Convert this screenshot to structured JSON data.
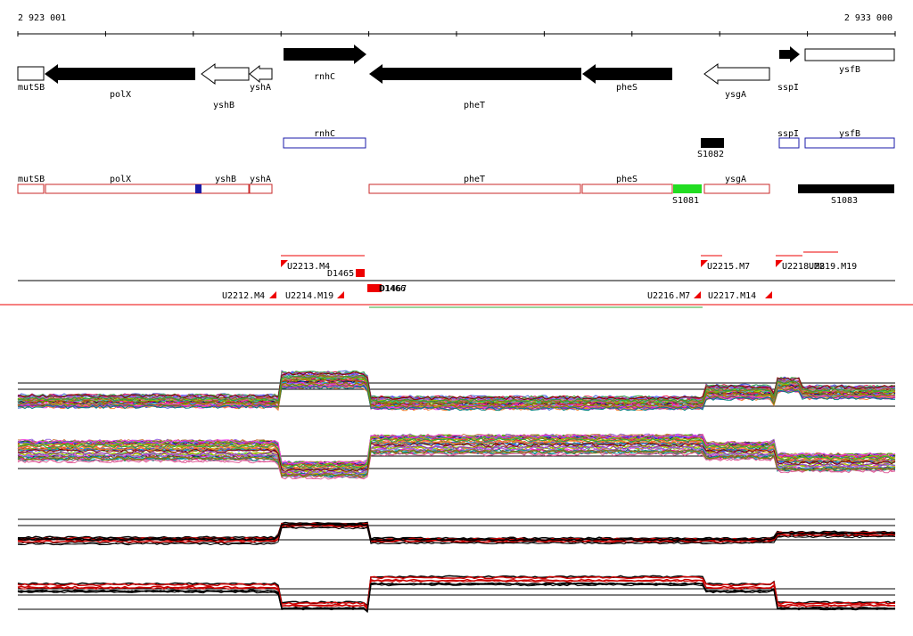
{
  "axis": {
    "left_label": "2 923 001",
    "right_label": "2 933 000"
  },
  "genes": [
    {
      "label": "mutSB",
      "strand": "none",
      "fill": "white"
    },
    {
      "label": "polX",
      "strand": "-",
      "fill": "black"
    },
    {
      "label": "yshB",
      "strand": "-",
      "fill": "white"
    },
    {
      "label": "yshA",
      "strand": "-",
      "fill": "white"
    },
    {
      "label": "rnhC",
      "strand": "+",
      "fill": "black"
    },
    {
      "label": "pheT",
      "strand": "-",
      "fill": "black"
    },
    {
      "label": "pheS",
      "strand": "-",
      "fill": "black"
    },
    {
      "label": "ysgA",
      "strand": "-",
      "fill": "white"
    },
    {
      "label": "sspI",
      "strand": "+",
      "fill": "black"
    },
    {
      "label": "ysfB",
      "strand": "none",
      "fill": "white"
    }
  ],
  "blue_track": [
    {
      "label": "rnhC"
    },
    {
      "label": "S1082"
    },
    {
      "label": "sspI"
    },
    {
      "label": "ysfB"
    }
  ],
  "red_track": [
    {
      "label": "mutSB"
    },
    {
      "label": "polX"
    },
    {
      "label": "yshB"
    },
    {
      "label": "yshA"
    },
    {
      "label": "pheT"
    },
    {
      "label": "pheS"
    },
    {
      "label": "S1081"
    },
    {
      "label": "ysgA"
    },
    {
      "label": "S1083"
    }
  ],
  "segments": [
    "U2213.M4",
    "D1465",
    "U2212.M4",
    "U2214.M19",
    "D1467",
    "D1466",
    "U2215.M7",
    "U2216.M7",
    "U2217.M14",
    "U2218.M8",
    "U2219.M19"
  ],
  "colors": {
    "gene_black": "#000000",
    "blue_outline": "#1a1aa8",
    "red_outline": "#c82828",
    "green_feature": "#22dd22",
    "red_segment": "#ee0000",
    "green_line": "#33aa33"
  }
}
